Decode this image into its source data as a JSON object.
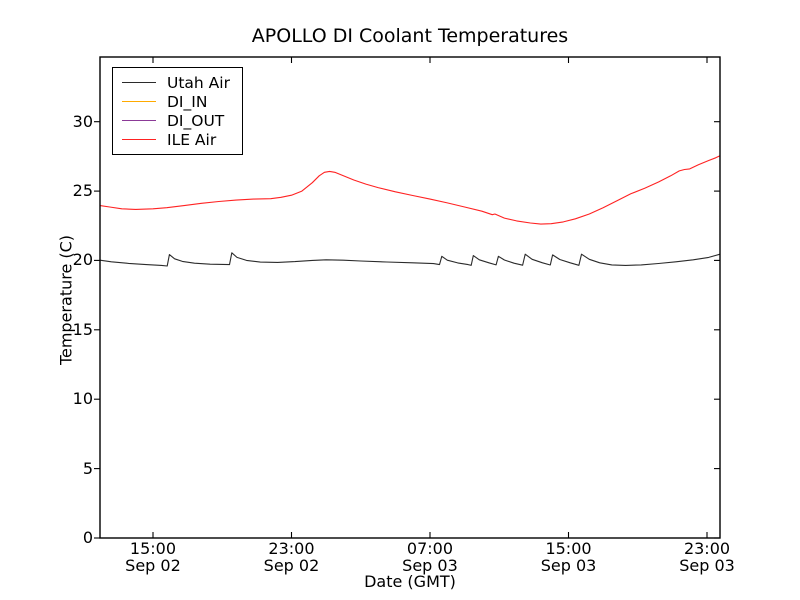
{
  "figure": {
    "background": "#ffffff",
    "frame_color": "#000000"
  },
  "chart_data": {
    "type": "line",
    "title": "APOLLO DI Coolant Temperatures",
    "xlabel": "Date (GMT)",
    "ylabel": "Temperature (C)",
    "grid": false,
    "legend_position": "upper left",
    "x_axis": {
      "unit": "hours since Sep 02 00:00 GMT",
      "range_hours": [
        11.94,
        47.75
      ],
      "ticks": [
        {
          "hours": 15,
          "time": "15:00",
          "date": "Sep 02"
        },
        {
          "hours": 23,
          "time": "23:00",
          "date": "Sep 02"
        },
        {
          "hours": 31,
          "time": "07:00",
          "date": "Sep 03"
        },
        {
          "hours": 39,
          "time": "15:00",
          "date": "Sep 03"
        },
        {
          "hours": 47,
          "time": "23:00",
          "date": "Sep 03"
        }
      ]
    },
    "y_axis": {
      "range": [
        0,
        34.66
      ],
      "ticks": [
        0,
        5,
        10,
        15,
        20,
        25,
        30
      ]
    },
    "series": [
      {
        "name": "Utah Air",
        "color": "#2b2b2b",
        "points": [
          [
            11.94,
            20.02
          ],
          [
            12.6,
            19.9
          ],
          [
            13.6,
            19.79
          ],
          [
            14.6,
            19.7
          ],
          [
            15.5,
            19.64
          ],
          [
            15.82,
            19.6
          ],
          [
            15.95,
            20.42
          ],
          [
            16.25,
            20.12
          ],
          [
            16.7,
            19.93
          ],
          [
            17.4,
            19.8
          ],
          [
            18.3,
            19.73
          ],
          [
            19.42,
            19.7
          ],
          [
            19.55,
            20.55
          ],
          [
            19.85,
            20.22
          ],
          [
            20.4,
            20.0
          ],
          [
            21.2,
            19.88
          ],
          [
            22.2,
            19.86
          ],
          [
            23.2,
            19.92
          ],
          [
            24.2,
            20.0
          ],
          [
            25.0,
            20.05
          ],
          [
            26.0,
            20.02
          ],
          [
            27.0,
            19.96
          ],
          [
            28.5,
            19.89
          ],
          [
            30.0,
            19.83
          ],
          [
            31.2,
            19.77
          ],
          [
            31.55,
            19.7
          ],
          [
            31.68,
            20.3
          ],
          [
            32.0,
            20.02
          ],
          [
            32.6,
            19.82
          ],
          [
            33.2,
            19.7
          ],
          [
            33.38,
            19.65
          ],
          [
            33.5,
            20.35
          ],
          [
            33.85,
            20.05
          ],
          [
            34.4,
            19.83
          ],
          [
            34.82,
            19.68
          ],
          [
            34.95,
            20.3
          ],
          [
            35.3,
            20.03
          ],
          [
            35.85,
            19.8
          ],
          [
            36.35,
            19.66
          ],
          [
            36.5,
            20.45
          ],
          [
            36.9,
            20.08
          ],
          [
            37.5,
            19.83
          ],
          [
            37.95,
            19.67
          ],
          [
            38.08,
            20.4
          ],
          [
            38.5,
            20.07
          ],
          [
            39.1,
            19.83
          ],
          [
            39.6,
            19.65
          ],
          [
            39.75,
            20.45
          ],
          [
            40.2,
            20.08
          ],
          [
            40.8,
            19.83
          ],
          [
            41.5,
            19.68
          ],
          [
            42.3,
            19.64
          ],
          [
            43.2,
            19.68
          ],
          [
            44.2,
            19.78
          ],
          [
            45.2,
            19.9
          ],
          [
            46.2,
            20.05
          ],
          [
            47.1,
            20.22
          ],
          [
            47.75,
            20.45
          ]
        ]
      },
      {
        "name": "DI_IN",
        "color": "#ffaa00",
        "points": []
      },
      {
        "name": "DI_OUT",
        "color": "#8b3a97",
        "points": []
      },
      {
        "name": "ILE Air",
        "color": "#ff2222",
        "points": [
          [
            11.94,
            23.95
          ],
          [
            12.5,
            23.85
          ],
          [
            13.2,
            23.72
          ],
          [
            14.0,
            23.68
          ],
          [
            15.0,
            23.72
          ],
          [
            15.8,
            23.8
          ],
          [
            16.8,
            23.95
          ],
          [
            17.8,
            24.12
          ],
          [
            18.8,
            24.25
          ],
          [
            19.8,
            24.35
          ],
          [
            20.8,
            24.42
          ],
          [
            21.8,
            24.45
          ],
          [
            22.4,
            24.55
          ],
          [
            23.0,
            24.7
          ],
          [
            23.6,
            25.0
          ],
          [
            24.2,
            25.6
          ],
          [
            24.6,
            26.1
          ],
          [
            24.9,
            26.35
          ],
          [
            25.2,
            26.42
          ],
          [
            25.5,
            26.35
          ],
          [
            26.0,
            26.1
          ],
          [
            26.6,
            25.8
          ],
          [
            27.3,
            25.5
          ],
          [
            28.0,
            25.25
          ],
          [
            29.0,
            24.95
          ],
          [
            30.0,
            24.68
          ],
          [
            31.0,
            24.42
          ],
          [
            32.0,
            24.15
          ],
          [
            33.0,
            23.85
          ],
          [
            34.0,
            23.55
          ],
          [
            34.6,
            23.3
          ],
          [
            34.75,
            23.35
          ],
          [
            35.3,
            23.05
          ],
          [
            36.0,
            22.85
          ],
          [
            36.8,
            22.7
          ],
          [
            37.4,
            22.62
          ],
          [
            38.0,
            22.65
          ],
          [
            38.7,
            22.78
          ],
          [
            39.4,
            23.0
          ],
          [
            40.2,
            23.35
          ],
          [
            41.0,
            23.8
          ],
          [
            41.8,
            24.3
          ],
          [
            42.6,
            24.8
          ],
          [
            43.4,
            25.2
          ],
          [
            44.2,
            25.65
          ],
          [
            44.9,
            26.1
          ],
          [
            45.4,
            26.45
          ],
          [
            45.7,
            26.55
          ],
          [
            46.0,
            26.6
          ],
          [
            46.5,
            26.9
          ],
          [
            47.1,
            27.2
          ],
          [
            47.5,
            27.4
          ],
          [
            47.75,
            27.55
          ]
        ]
      }
    ]
  }
}
